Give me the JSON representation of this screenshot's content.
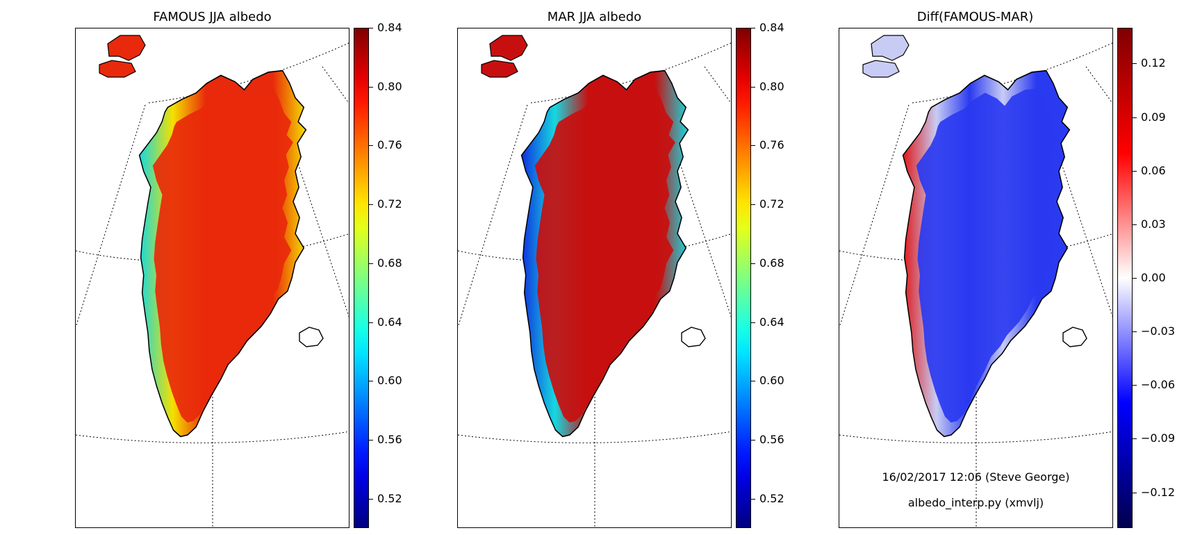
{
  "panels": [
    {
      "title": "FAMOUS JJA albedo",
      "map_layer": "famous-albedo",
      "colorbar": {
        "colormap": "jet",
        "range": [
          0.5,
          0.84
        ],
        "ticks": [
          "0.84",
          "0.80",
          "0.76",
          "0.72",
          "0.68",
          "0.64",
          "0.60",
          "0.56",
          "0.52"
        ]
      }
    },
    {
      "title": "MAR JJA albedo",
      "map_layer": "mar-albedo",
      "colorbar": {
        "colormap": "jet",
        "range": [
          0.5,
          0.84
        ],
        "ticks": [
          "0.84",
          "0.80",
          "0.76",
          "0.72",
          "0.68",
          "0.64",
          "0.60",
          "0.56",
          "0.52"
        ]
      }
    },
    {
      "title": "Diff(FAMOUS-MAR)",
      "map_layer": "albedo-difference",
      "colorbar": {
        "colormap": "seismic",
        "range": [
          -0.14,
          0.14
        ],
        "ticks": [
          "0.12",
          "0.09",
          "0.06",
          "0.03",
          "0.00",
          "−0.03",
          "−0.06",
          "−0.09",
          "−0.12"
        ]
      }
    }
  ],
  "footer": {
    "timestamp": "16/02/2017 12:06 (Steve George)",
    "script": "albedo_interp.py (xmvlj)"
  },
  "colors": {
    "ice_high": "#e8290b",
    "ice_mar": "#c80f0f",
    "edge_yellow": "#f5e000",
    "edge_cyan": "#16d8e0",
    "edge_blue": "#1030e0",
    "diff_blue": "#2a3af0",
    "diff_light": "#c8ccf4",
    "diff_red": "#e01818"
  }
}
